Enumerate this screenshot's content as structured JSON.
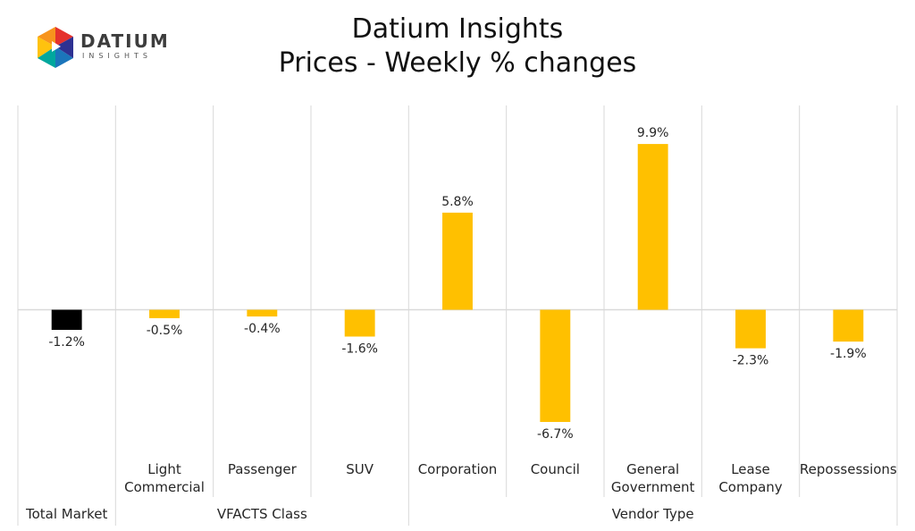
{
  "logo": {
    "word": "DATIUM",
    "sub": "INSIGHTS"
  },
  "chart_data": {
    "type": "bar",
    "title": "Datium Insights",
    "subtitle": "Prices - Weekly % changes",
    "categories": [
      "",
      "Light Commercial",
      "Passenger",
      "SUV",
      "Corporation",
      "Council",
      "General Government",
      "Lease Company",
      "Repossessions"
    ],
    "category_lines": [
      [
        ""
      ],
      [
        "Light",
        "Commercial"
      ],
      [
        "Passenger"
      ],
      [
        "SUV"
      ],
      [
        "Corporation"
      ],
      [
        "Council"
      ],
      [
        "General",
        "Government"
      ],
      [
        "Lease",
        "Company"
      ],
      [
        "Repossessions"
      ]
    ],
    "values": [
      -1.2,
      -0.5,
      -0.4,
      -1.6,
      5.8,
      -6.7,
      9.9,
      -2.3,
      -1.9
    ],
    "value_labels": [
      "-1.2%",
      "-0.5%",
      "-0.4%",
      "-1.6%",
      "5.8%",
      "-6.7%",
      "9.9%",
      "-2.3%",
      "-1.9%"
    ],
    "groups": [
      {
        "label": "Total Market",
        "start": 0,
        "end": 0
      },
      {
        "label": "VFACTS Class",
        "start": 1,
        "end": 3
      },
      {
        "label": "Vendor Type",
        "start": 4,
        "end": 8
      }
    ],
    "colors": {
      "total": "#000000",
      "bar": "#FFC000",
      "grid": "#D9D9D9",
      "text": "#262626"
    },
    "ylim": [
      -8.3,
      12.2
    ],
    "xlabel": "",
    "ylabel": "",
    "grid": true
  }
}
